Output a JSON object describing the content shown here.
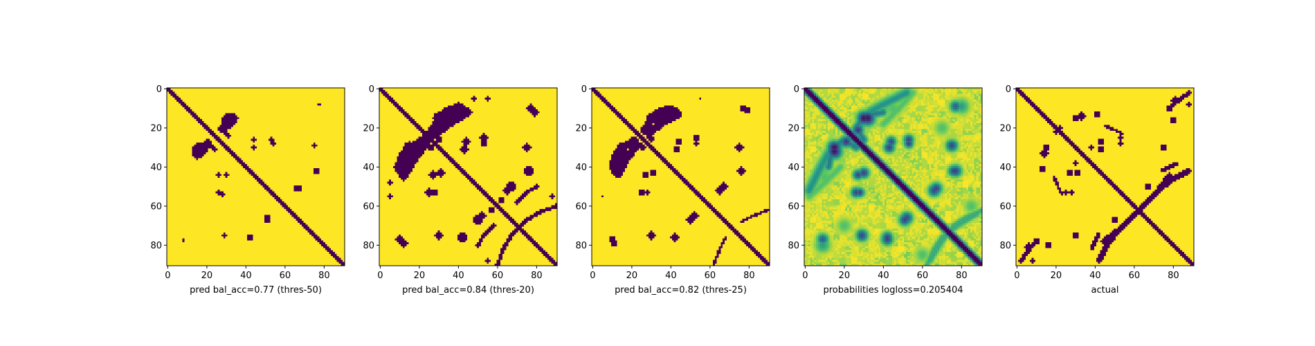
{
  "figure": {
    "background": "#ffffff"
  },
  "colormap": {
    "low": "#440154",
    "mid": "#21918c",
    "high": "#fde725"
  },
  "chart_data": [
    {
      "type": "heatmap",
      "mode": "binary",
      "title": "",
      "xlabel": "pred bal_acc=0.77 (thres-50)",
      "ylabel": "",
      "size": 91,
      "xticks": [
        0,
        20,
        40,
        60,
        80
      ],
      "yticks": [
        0,
        20,
        40,
        60,
        80
      ],
      "diagonal_halfwidth": 1.2,
      "blobs": [
        {
          "x": 30,
          "y": 15,
          "r": 2.2,
          "v": 1
        },
        {
          "x": 15,
          "y": 32,
          "r": 2.5,
          "v": 1
        },
        {
          "x": 20,
          "y": 28,
          "r": 2,
          "v": 1
        },
        {
          "x": 53,
          "y": 26,
          "r": 1.2,
          "v": 1
        },
        {
          "x": 77,
          "y": 8,
          "r": 0.8,
          "v": 1
        },
        {
          "x": 44,
          "y": 26,
          "r": 1,
          "v": 1
        },
        {
          "x": 75,
          "y": 29,
          "r": 1.2,
          "v": 1
        },
        {
          "x": 76,
          "y": 42,
          "r": 1.2,
          "v": 1
        },
        {
          "x": 30,
          "y": 44,
          "r": 1.2,
          "v": 1
        },
        {
          "x": 67,
          "y": 51,
          "r": 1.5,
          "v": 1
        },
        {
          "x": 28,
          "y": 54,
          "r": 1,
          "v": 1
        },
        {
          "x": 51,
          "y": 66,
          "r": 1.5,
          "v": 1
        },
        {
          "x": 29,
          "y": 75,
          "r": 1.4,
          "v": 1
        },
        {
          "x": 42,
          "y": 76,
          "r": 1.5,
          "v": 1
        },
        {
          "x": 8,
          "y": 78,
          "r": 0.8,
          "v": 1
        }
      ],
      "arcs": [
        {
          "points": [
            [
              28,
              19
            ],
            [
              31,
              14
            ],
            [
              35,
              15
            ],
            [
              32,
              19
            ],
            [
              27,
              21
            ]
          ],
          "w": 1.3
        },
        {
          "points": [
            [
              14,
              34
            ],
            [
              16,
              29
            ],
            [
              21,
              28
            ],
            [
              24,
              31
            ]
          ],
          "w": 1.1
        }
      ]
    },
    {
      "type": "heatmap",
      "mode": "binary",
      "title": "",
      "xlabel": "pred bal_acc=0.84 (thres-20)",
      "ylabel": "",
      "size": 91,
      "xticks": [
        0,
        20,
        40,
        60,
        80
      ],
      "yticks": [
        0,
        20,
        40,
        60,
        80
      ],
      "diagonal_halfwidth": 1.8,
      "blobs": [
        {
          "x": 30,
          "y": 15,
          "r": 3,
          "v": 1
        },
        {
          "x": 40,
          "y": 10,
          "r": 2.5,
          "v": 1
        },
        {
          "x": 15,
          "y": 33,
          "r": 3.5,
          "v": 1
        },
        {
          "x": 22,
          "y": 27,
          "r": 3,
          "v": 1
        },
        {
          "x": 44,
          "y": 27,
          "r": 2,
          "v": 1
        },
        {
          "x": 53,
          "y": 25,
          "r": 2,
          "v": 1
        },
        {
          "x": 75,
          "y": 30,
          "r": 2,
          "v": 1
        },
        {
          "x": 77,
          "y": 10,
          "r": 2,
          "v": 1
        },
        {
          "x": 76,
          "y": 42,
          "r": 2,
          "v": 1
        },
        {
          "x": 31,
          "y": 43,
          "r": 2,
          "v": 1
        },
        {
          "x": 67,
          "y": 50,
          "r": 2.5,
          "v": 1
        },
        {
          "x": 28,
          "y": 53,
          "r": 1.8,
          "v": 1
        },
        {
          "x": 52,
          "y": 65,
          "r": 2.2,
          "v": 1
        },
        {
          "x": 30,
          "y": 75,
          "r": 2.2,
          "v": 1
        },
        {
          "x": 42,
          "y": 76,
          "r": 2.5,
          "v": 1
        },
        {
          "x": 12,
          "y": 79,
          "r": 2,
          "v": 1
        },
        {
          "x": 57,
          "y": 62,
          "r": 1.5,
          "v": 1
        },
        {
          "x": 88,
          "y": 55,
          "r": 1,
          "v": 1
        },
        {
          "x": 5,
          "y": 48,
          "r": 1,
          "v": 1
        },
        {
          "x": 55,
          "y": 5,
          "r": 1,
          "v": 1
        }
      ],
      "arcs": [
        {
          "points": [
            [
              28,
              19
            ],
            [
              33,
              12
            ],
            [
              40,
              9
            ],
            [
              45,
              12
            ],
            [
              38,
              16
            ],
            [
              30,
              22
            ]
          ],
          "w": 2
        },
        {
          "points": [
            [
              12,
              40
            ],
            [
              14,
              30
            ],
            [
              20,
              27
            ],
            [
              26,
              30
            ]
          ],
          "w": 1.6
        },
        {
          "points": [
            [
              60,
              90
            ],
            [
              63,
              82
            ],
            [
              67,
              75
            ],
            [
              72,
              70
            ]
          ],
          "w": 1
        },
        {
          "points": [
            [
              70,
              58
            ],
            [
              75,
              53
            ],
            [
              80,
              50
            ]
          ],
          "w": 1
        }
      ]
    },
    {
      "type": "heatmap",
      "mode": "binary",
      "title": "",
      "xlabel": "pred bal_acc=0.82 (thres-25)",
      "ylabel": "",
      "size": 91,
      "xticks": [
        0,
        20,
        40,
        60,
        80
      ],
      "yticks": [
        0,
        20,
        40,
        60,
        80
      ],
      "diagonal_halfwidth": 1.6,
      "blobs": [
        {
          "x": 30,
          "y": 15,
          "r": 2.8,
          "v": 1
        },
        {
          "x": 15,
          "y": 33,
          "r": 3.2,
          "v": 1
        },
        {
          "x": 21,
          "y": 27,
          "r": 2.8,
          "v": 1
        },
        {
          "x": 44,
          "y": 27,
          "r": 1.8,
          "v": 1
        },
        {
          "x": 53,
          "y": 25,
          "r": 1.8,
          "v": 1
        },
        {
          "x": 75,
          "y": 30,
          "r": 1.8,
          "v": 1
        },
        {
          "x": 77,
          "y": 10,
          "r": 1.8,
          "v": 1
        },
        {
          "x": 76,
          "y": 42,
          "r": 1.6,
          "v": 1
        },
        {
          "x": 31,
          "y": 43,
          "r": 1.8,
          "v": 1
        },
        {
          "x": 67,
          "y": 50,
          "r": 2.2,
          "v": 1
        },
        {
          "x": 28,
          "y": 53,
          "r": 1.4,
          "v": 1
        },
        {
          "x": 52,
          "y": 65,
          "r": 2,
          "v": 1
        },
        {
          "x": 30,
          "y": 75,
          "r": 2,
          "v": 1
        },
        {
          "x": 42,
          "y": 76,
          "r": 2.2,
          "v": 1
        },
        {
          "x": 11,
          "y": 79,
          "r": 1.8,
          "v": 1
        },
        {
          "x": 55,
          "y": 5,
          "r": 0.8,
          "v": 1
        }
      ],
      "arcs": [
        {
          "points": [
            [
              28,
              19
            ],
            [
              33,
              12
            ],
            [
              40,
              10
            ],
            [
              44,
              13
            ],
            [
              36,
              17
            ],
            [
              30,
              22
            ]
          ],
          "w": 1.8
        },
        {
          "points": [
            [
              12,
              40
            ],
            [
              14,
              30
            ],
            [
              20,
              27
            ],
            [
              26,
              30
            ]
          ],
          "w": 1.4
        },
        {
          "points": [
            [
              62,
              90
            ],
            [
              65,
              82
            ],
            [
              68,
              76
            ]
          ],
          "w": 0.8
        }
      ]
    },
    {
      "type": "heatmap",
      "mode": "continuous",
      "title": "",
      "xlabel": "probabilities logloss=0.205404",
      "ylabel": "",
      "size": 91,
      "xticks": [
        0,
        20,
        40,
        60,
        80
      ],
      "yticks": [
        0,
        20,
        40,
        60,
        80
      ],
      "diagonal_halfwidth": 1.5,
      "blobs": [
        {
          "x": 30,
          "y": 15,
          "r": 3.5,
          "v": 0.95
        },
        {
          "x": 15,
          "y": 32,
          "r": 3.8,
          "v": 0.95
        },
        {
          "x": 21,
          "y": 27,
          "r": 3,
          "v": 0.85
        },
        {
          "x": 44,
          "y": 27,
          "r": 2.6,
          "v": 0.8
        },
        {
          "x": 53,
          "y": 26,
          "r": 2.6,
          "v": 0.8
        },
        {
          "x": 75,
          "y": 29,
          "r": 2.8,
          "v": 0.8
        },
        {
          "x": 77,
          "y": 9,
          "r": 3,
          "v": 0.7
        },
        {
          "x": 76,
          "y": 42,
          "r": 2.8,
          "v": 0.8
        },
        {
          "x": 30,
          "y": 43,
          "r": 2.8,
          "v": 0.8
        },
        {
          "x": 67,
          "y": 51,
          "r": 3,
          "v": 0.8
        },
        {
          "x": 28,
          "y": 53,
          "r": 2.4,
          "v": 0.8
        },
        {
          "x": 52,
          "y": 66,
          "r": 3,
          "v": 0.8
        },
        {
          "x": 29,
          "y": 75,
          "r": 3,
          "v": 0.8
        },
        {
          "x": 42,
          "y": 77,
          "r": 3,
          "v": 0.8
        },
        {
          "x": 9,
          "y": 80,
          "r": 4,
          "v": 0.45
        },
        {
          "x": 40,
          "y": 10,
          "r": 4,
          "v": 0.35
        },
        {
          "x": 10,
          "y": 45,
          "r": 5,
          "v": 0.3
        },
        {
          "x": 60,
          "y": 60,
          "r": 3,
          "v": 0.35
        },
        {
          "x": 85,
          "y": 60,
          "r": 4,
          "v": 0.3
        },
        {
          "x": 20,
          "y": 70,
          "r": 4,
          "v": 0.3
        }
      ],
      "arcs": [
        {
          "points": [
            [
              28,
              19
            ],
            [
              33,
              12
            ],
            [
              40,
              8
            ],
            [
              46,
              5
            ],
            [
              52,
              2
            ]
          ],
          "w": 3,
          "v": 0.5
        },
        {
          "points": [
            [
              12,
              40
            ],
            [
              14,
              30
            ],
            [
              20,
              26
            ],
            [
              26,
              30
            ]
          ],
          "w": 2.2,
          "v": 0.6
        },
        {
          "points": [
            [
              62,
              91
            ],
            [
              66,
              82
            ],
            [
              70,
              76
            ],
            [
              78,
              70
            ],
            [
              88,
              64
            ]
          ],
          "w": 1.8,
          "v": 0.4
        },
        {
          "points": [
            [
              2,
              55
            ],
            [
              10,
              48
            ],
            [
              18,
              40
            ]
          ],
          "w": 2.5,
          "v": 0.3
        }
      ],
      "noise": 0.22
    },
    {
      "type": "heatmap",
      "mode": "binary",
      "title": "",
      "xlabel": "actual",
      "ylabel": "",
      "size": 91,
      "xticks": [
        0,
        20,
        40,
        60,
        80
      ],
      "yticks": [
        0,
        20,
        40,
        60,
        80
      ],
      "diagonal_halfwidth": 1.4,
      "blobs": [
        {
          "x": 30,
          "y": 15,
          "r": 1.5,
          "v": 1
        },
        {
          "x": 14,
          "y": 33,
          "r": 2,
          "v": 1
        },
        {
          "x": 43,
          "y": 27,
          "r": 1.5,
          "v": 1
        },
        {
          "x": 53,
          "y": 25,
          "r": 1.4,
          "v": 1
        },
        {
          "x": 41,
          "y": 13,
          "r": 1.5,
          "v": 1
        },
        {
          "x": 78,
          "y": 10,
          "r": 1.6,
          "v": 1
        },
        {
          "x": 31,
          "y": 43,
          "r": 1.5,
          "v": 1
        },
        {
          "x": 67,
          "y": 50,
          "r": 1.5,
          "v": 1
        },
        {
          "x": 28,
          "y": 53,
          "r": 1.2,
          "v": 1
        },
        {
          "x": 30,
          "y": 75,
          "r": 1.5,
          "v": 1
        },
        {
          "x": 6,
          "y": 81,
          "r": 2,
          "v": 1
        },
        {
          "x": 16,
          "y": 80,
          "r": 1.5,
          "v": 1
        },
        {
          "x": 88,
          "y": 8,
          "r": 1.2,
          "v": 1
        },
        {
          "x": 38,
          "y": 30,
          "r": 1.2,
          "v": 1
        },
        {
          "x": 22,
          "y": 20,
          "r": 1,
          "v": 1
        }
      ],
      "arcs": [
        {
          "points": [
            [
              42,
              88
            ],
            [
              46,
              80
            ],
            [
              52,
              72
            ],
            [
              58,
              66
            ],
            [
              65,
              60
            ],
            [
              72,
              52
            ],
            [
              78,
              44
            ]
          ],
          "w": 1.4
        },
        {
          "points": [
            [
              2,
              88
            ],
            [
              5,
              84
            ],
            [
              8,
              80
            ]
          ],
          "w": 1
        },
        {
          "points": [
            [
              74,
              42
            ],
            [
              78,
              40
            ],
            [
              82,
              38
            ]
          ],
          "w": 0.9
        },
        {
          "points": [
            [
              44,
              84
            ],
            [
              47,
              78
            ],
            [
              52,
              72
            ]
          ],
          "w": 0.8
        },
        {
          "points": [
            [
              45,
              19
            ],
            [
              50,
              21
            ],
            [
              54,
              23
            ]
          ],
          "w": 0.8
        }
      ]
    }
  ]
}
